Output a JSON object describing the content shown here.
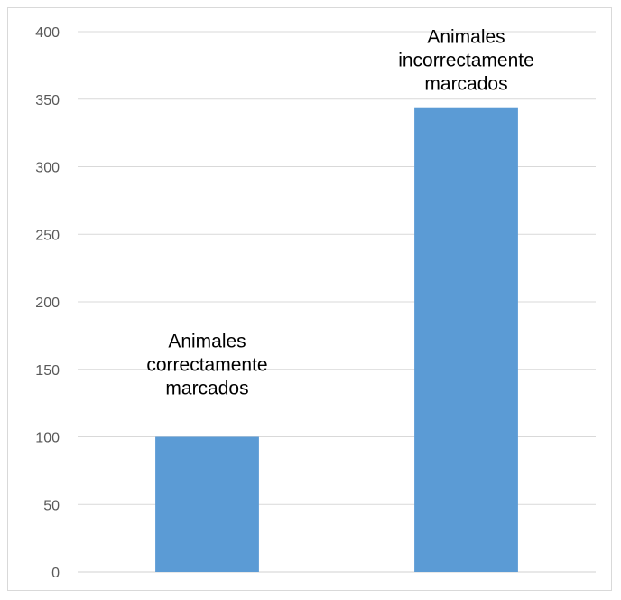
{
  "chart_data": {
    "type": "bar",
    "categories": [
      "Animales correctamente marcados",
      "Animales incorrectamente marcados"
    ],
    "values": [
      100,
      344
    ],
    "data_labels": [
      [
        "Animales",
        "correctamente",
        "marcados"
      ],
      [
        "Animales",
        "incorrectamente",
        "marcados"
      ]
    ],
    "title": "",
    "xlabel": "",
    "ylabel": "",
    "ylim": [
      0,
      400
    ],
    "yticks": [
      0,
      50,
      100,
      150,
      200,
      250,
      300,
      350,
      400
    ],
    "grid": true,
    "legend": "none",
    "colors": {
      "bar": "#5b9bd5",
      "grid": "#d9d9d9",
      "axis": "#d9d9d9",
      "tick_text": "#595959",
      "label_text": "#000000"
    }
  }
}
